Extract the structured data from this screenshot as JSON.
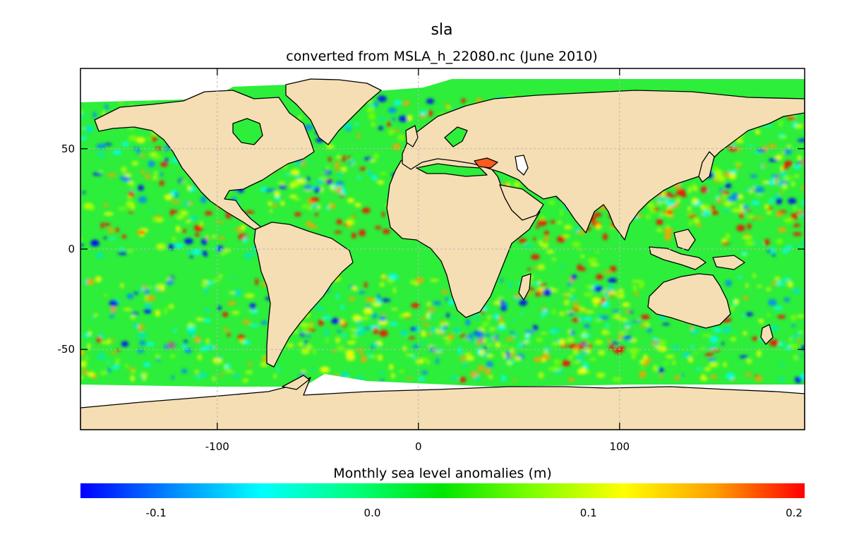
{
  "title": "sla",
  "subtitle": "converted from MSLA_h_22080.nc (June 2010)",
  "colorbar": {
    "label": "Monthly sea level anomalies (m)",
    "range": [
      -0.135,
      0.2
    ],
    "ticks": [
      {
        "value": -0.1,
        "label": "-0.1"
      },
      {
        "value": 0.0,
        "label": "0.0"
      },
      {
        "value": 0.1,
        "label": "0.1"
      },
      {
        "value": 0.2,
        "label": "0.2"
      }
    ],
    "colors": [
      "#0000ff",
      "#0088ff",
      "#00ffff",
      "#00ff80",
      "#00e600",
      "#80ff00",
      "#ffff00",
      "#ffa000",
      "#ff0000"
    ]
  },
  "map": {
    "projection": "equirectangular",
    "lon_range": [
      -168,
      192
    ],
    "lat_range": [
      -90,
      90
    ],
    "x_ticks": [
      {
        "value": -100,
        "label": "-100"
      },
      {
        "value": 0,
        "label": "0"
      },
      {
        "value": 100,
        "label": "100"
      }
    ],
    "y_ticks": [
      {
        "value": 50,
        "label": "50"
      },
      {
        "value": 0,
        "label": "0"
      },
      {
        "value": -50,
        "label": "-50"
      }
    ],
    "land_color": "#f5deb3",
    "nodata_color": "#ffffff",
    "grid": true
  }
}
